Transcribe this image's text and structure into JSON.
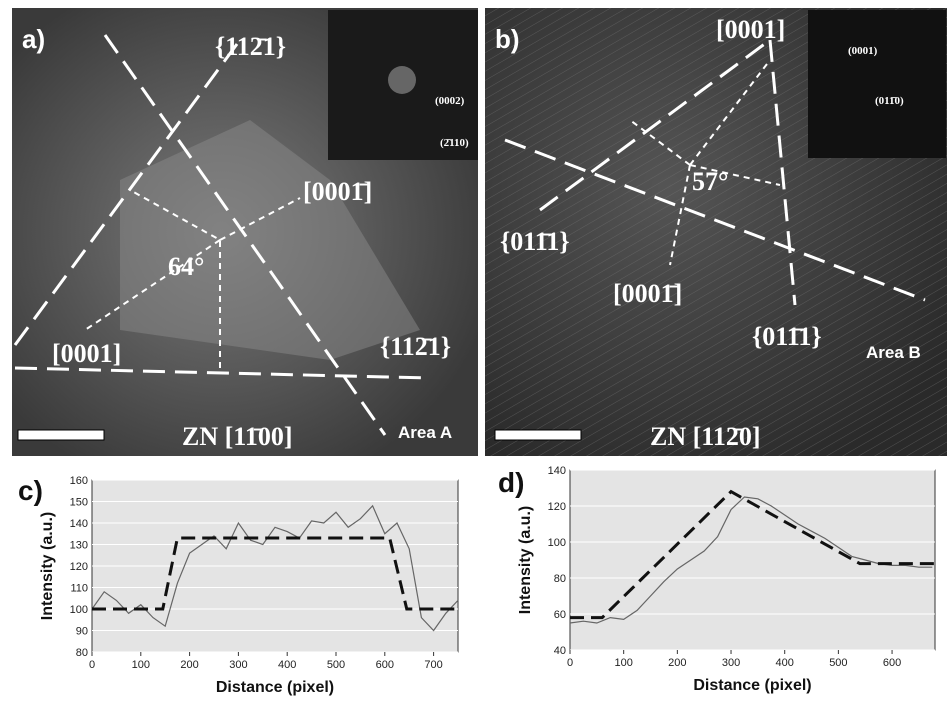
{
  "panels": {
    "a": {
      "label": "a)",
      "annotations": [
        "{112̄1}",
        "[0001̄]",
        "64°",
        "[0001]",
        "{112̄1}"
      ],
      "zone": "ZN [11̄00]",
      "area": "Area A",
      "inset": [
        "(0002)",
        "(2̄110)"
      ]
    },
    "b": {
      "label": "b)",
      "annotations": [
        "[0001]",
        "57°",
        "{011̄1}",
        "[0001̄]",
        "{011̄1}"
      ],
      "zone": "ZN [112̄0]",
      "area": "Area B",
      "inset": [
        "(0001)",
        "(011̄0)"
      ]
    }
  },
  "chart_data": [
    {
      "type": "line",
      "label": "c)",
      "xlabel": "Distance (pixel)",
      "ylabel": "Intensity (a.u.)",
      "xlim": [
        0,
        750
      ],
      "ylim": [
        80,
        160
      ],
      "xticks": [
        0,
        100,
        200,
        300,
        400,
        500,
        600,
        700
      ],
      "yticks": [
        80,
        90,
        100,
        110,
        120,
        130,
        140,
        150,
        160
      ],
      "grid": true,
      "series": [
        {
          "color": "#666666",
          "style": "solid",
          "x": [
            0,
            25,
            50,
            75,
            100,
            125,
            150,
            175,
            200,
            225,
            250,
            275,
            300,
            325,
            350,
            375,
            400,
            425,
            450,
            475,
            500,
            525,
            550,
            575,
            600,
            625,
            650,
            675,
            700,
            725,
            750
          ],
          "values": [
            100,
            108,
            104,
            98,
            102,
            96,
            92,
            112,
            126,
            130,
            134,
            128,
            140,
            132,
            130,
            138,
            136,
            133,
            141,
            140,
            145,
            138,
            142,
            148,
            135,
            140,
            128,
            96,
            90,
            98,
            104
          ]
        },
        {
          "color": "#111111",
          "style": "dashed",
          "x": [
            0,
            145,
            175,
            610,
            645,
            750
          ],
          "values": [
            100,
            100,
            133,
            133,
            100,
            100
          ]
        }
      ]
    },
    {
      "type": "line",
      "label": "d)",
      "xlabel": "Distance (pixel)",
      "ylabel": "Intensity (a.u.)",
      "xlim": [
        0,
        680
      ],
      "ylim": [
        40,
        140
      ],
      "xticks": [
        0,
        100,
        200,
        300,
        400,
        500,
        600
      ],
      "yticks": [
        40,
        60,
        80,
        100,
        120,
        140
      ],
      "grid": true,
      "series": [
        {
          "color": "#666666",
          "style": "solid",
          "x": [
            0,
            25,
            50,
            75,
            100,
            125,
            150,
            175,
            200,
            225,
            250,
            275,
            300,
            325,
            350,
            375,
            400,
            425,
            450,
            475,
            500,
            525,
            550,
            575,
            600,
            625,
            650,
            675
          ],
          "values": [
            55,
            56,
            55,
            58,
            57,
            62,
            70,
            78,
            85,
            90,
            95,
            103,
            118,
            125,
            124,
            120,
            115,
            110,
            106,
            102,
            97,
            92,
            90,
            88,
            87,
            87,
            86,
            86
          ]
        },
        {
          "color": "#111111",
          "style": "dashed",
          "x": [
            0,
            60,
            300,
            540,
            680
          ],
          "values": [
            58,
            58,
            128,
            88,
            88
          ]
        }
      ]
    }
  ]
}
